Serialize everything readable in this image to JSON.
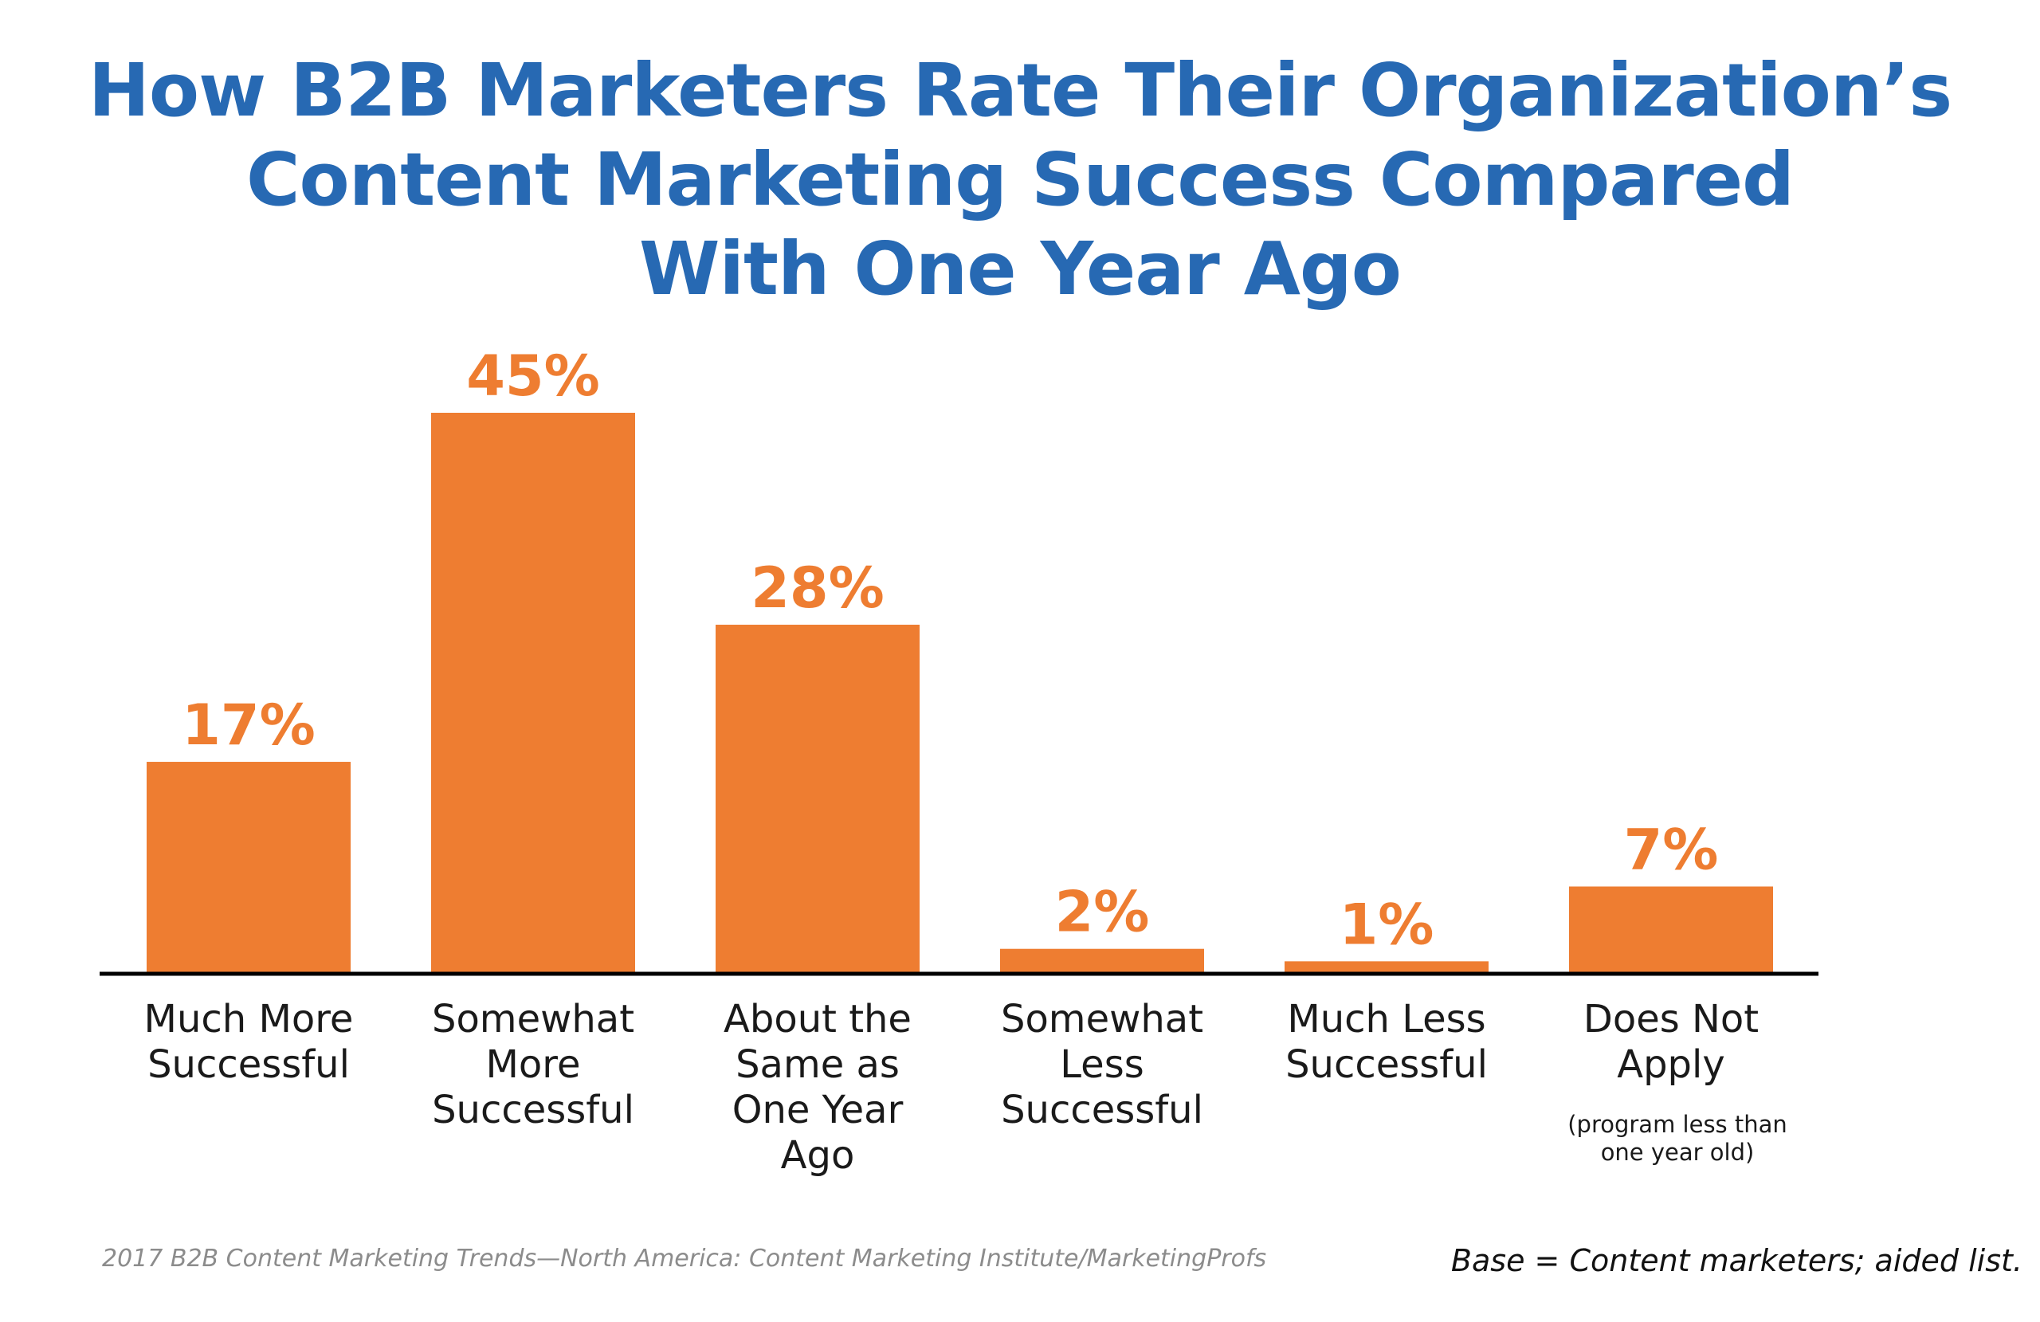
{
  "title_lines": [
    "How B2B Marketers Rate Their Organization’s",
    "Content Marketing Success Compared",
    "With One Year Ago"
  ],
  "chart_data": {
    "type": "bar",
    "title": "How B2B Marketers Rate Their Organization’s Content Marketing Success Compared With One Year Ago",
    "xlabel": "",
    "ylabel": "",
    "ylim": [
      0,
      45
    ],
    "grid": false,
    "legend": "none",
    "unit": "%",
    "categories": [
      "Much More Successful",
      "Somewhat More Successful",
      "About the Same as One Year Ago",
      "Somewhat Less Successful",
      "Much Less Successful",
      "Does Not Apply"
    ],
    "category_lines": [
      [
        "Much More",
        "Successful"
      ],
      [
        "Somewhat",
        "More",
        "Successful"
      ],
      [
        "About the",
        "Same as",
        "One Year",
        "Ago"
      ],
      [
        "Somewhat",
        "Less",
        "Successful"
      ],
      [
        "Much Less",
        "Successful"
      ],
      [
        "Does Not",
        "Apply"
      ]
    ],
    "category_notes": [
      "",
      "",
      "",
      "",
      "",
      "(program less than one year old)"
    ],
    "category_note_lines": [
      [],
      [],
      [],
      [],
      [],
      [
        "(program less than",
        "one year old)"
      ]
    ],
    "values": [
      17,
      45,
      28,
      2,
      1,
      7
    ],
    "data_labels": [
      "17%",
      "45%",
      "28%",
      "2%",
      "1%",
      "7%"
    ],
    "colors": {
      "bar": "#ee7d31",
      "title": "#2769b3",
      "axis": "#000000"
    }
  },
  "footer": {
    "source": "2017 B2B Content Marketing Trends—North America: Content Marketing Institute/MarketingProfs",
    "base": "Base = Content marketers; aided list."
  }
}
